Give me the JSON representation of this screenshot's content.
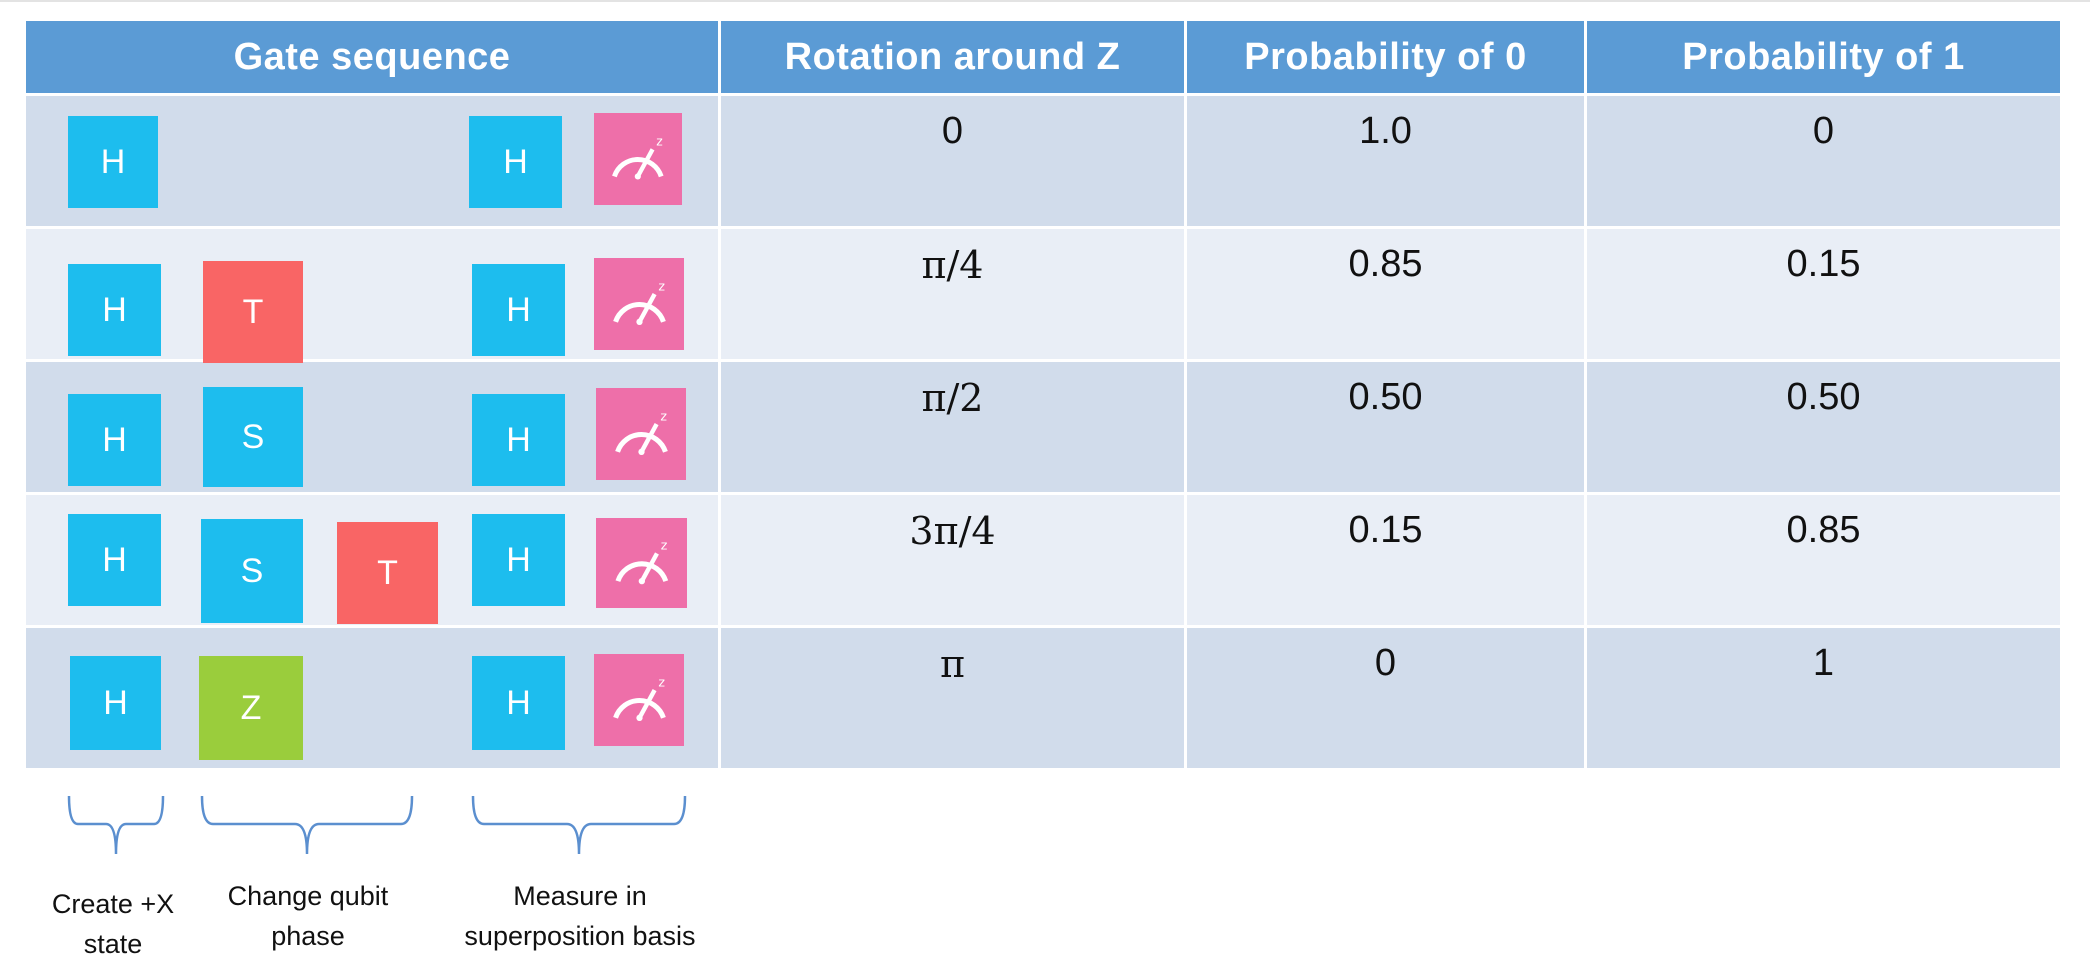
{
  "header": {
    "gate_sequence": "Gate sequence",
    "rotation": "Rotation around Z",
    "prob0": "Probability of 0",
    "prob1": "Probability of 1"
  },
  "rows": [
    {
      "gates": [
        "H",
        "H"
      ],
      "measure_icon": "measure-z-icon",
      "rotation": "0",
      "prob0": "1.0",
      "prob1": "0"
    },
    {
      "gates": [
        "H",
        "T",
        "H"
      ],
      "measure_icon": "measure-z-icon",
      "rotation": "π/4",
      "prob0": "0.85",
      "prob1": "0.15"
    },
    {
      "gates": [
        "H",
        "S",
        "H"
      ],
      "measure_icon": "measure-z-icon",
      "rotation": "π/2",
      "prob0": "0.50",
      "prob1": "0.50"
    },
    {
      "gates": [
        "H",
        "S",
        "T",
        "H"
      ],
      "measure_icon": "measure-z-icon",
      "rotation": "3π/4",
      "prob0": "0.15",
      "prob1": "0.85"
    },
    {
      "gates": [
        "H",
        "Z",
        "H"
      ],
      "measure_icon": "measure-z-icon",
      "rotation": "π",
      "prob0": "0",
      "prob1": "1"
    }
  ],
  "captions": {
    "create": "Create +X state",
    "create_line1": "Create +X",
    "create_line2": "state",
    "change_line1": "Change qubit",
    "change_line2": "phase",
    "measure_line1": "Measure in",
    "measure_line2": "superposition basis"
  },
  "measure_label": "z",
  "colors": {
    "header": "#5B9BD5",
    "row_dark": "#D1DCEB",
    "row_light": "#E9EEF6",
    "h_gate": "#1DBDEE",
    "t_gate": "#F96565",
    "s_gate": "#1DBDEE",
    "z_gate": "#9ACD3C",
    "measure_gate": "#EE6FA9"
  }
}
